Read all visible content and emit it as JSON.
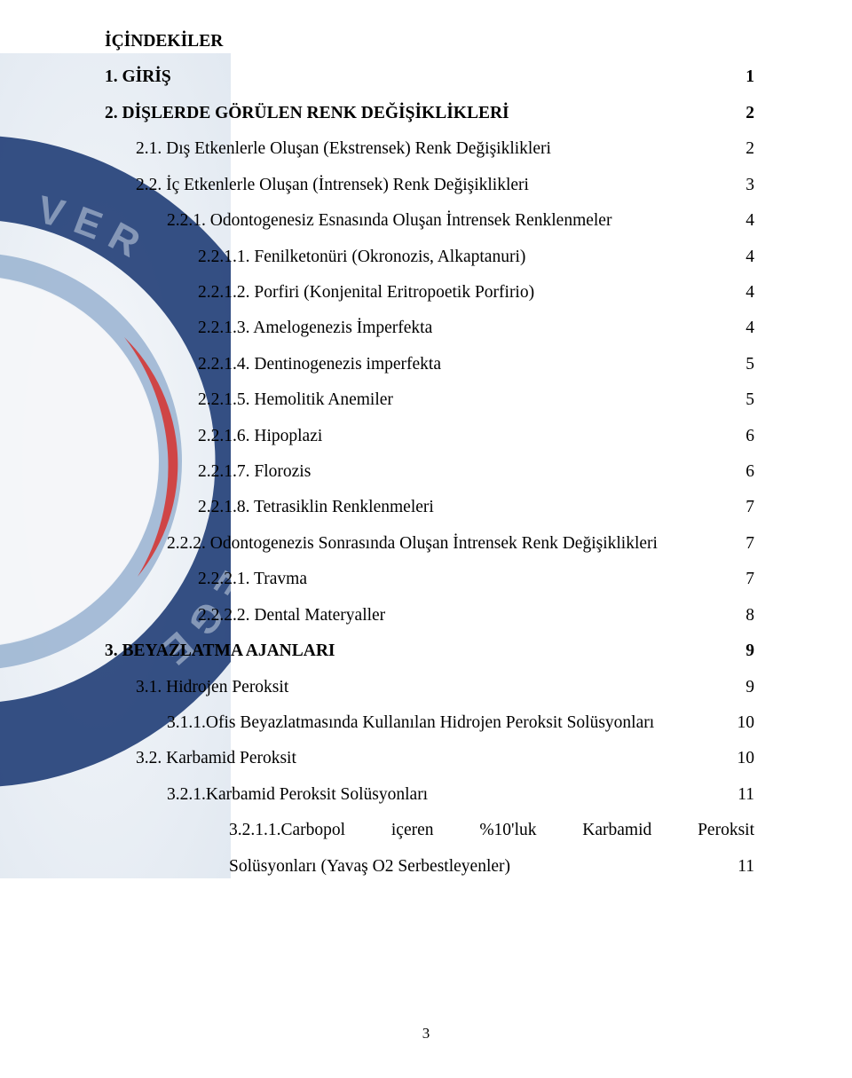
{
  "title": "İÇİNDEKİLER",
  "footer_page": "3",
  "watermark": {
    "bg": "#dfe6ee",
    "blue_dark": "#14326f",
    "blue_mid": "#6e8fbb",
    "red": "#d23b3a",
    "white": "#ffffff"
  },
  "entries": [
    {
      "indent": 0,
      "bold": true,
      "label": "1. GİRİŞ",
      "page": "1"
    },
    {
      "indent": 0,
      "bold": true,
      "label": "2. DİŞLERDE GÖRÜLEN RENK DEĞİŞİKLİKLERİ",
      "page": "2"
    },
    {
      "indent": 1,
      "bold": false,
      "label": "2.1. Dış Etkenlerle Oluşan (Ekstrensek) Renk Değişiklikleri",
      "page": "2"
    },
    {
      "indent": 1,
      "bold": false,
      "label": "2.2. İç Etkenlerle  Oluşan (İntrensek) Renk Değişiklikleri",
      "page": "3"
    },
    {
      "indent": 2,
      "bold": false,
      "label": "2.2.1. Odontogenesiz Esnasında Oluşan İntrensek Renklenmeler",
      "page": "4"
    },
    {
      "indent": 3,
      "bold": false,
      "label": "2.2.1.1. Fenilketonüri (Okronozis, Alkaptanuri)",
      "page": "4"
    },
    {
      "indent": 3,
      "bold": false,
      "label": "2.2.1.2. Porfiri (Konjenital Eritropoetik Porfirio)",
      "page": "4"
    },
    {
      "indent": 3,
      "bold": false,
      "label": "2.2.1.3. Amelogenezis İmperfekta",
      "page": "4"
    },
    {
      "indent": 3,
      "bold": false,
      "label": "2.2.1.4. Dentinogenezis imperfekta",
      "page": "5"
    },
    {
      "indent": 3,
      "bold": false,
      "label": "2.2.1.5. Hemolitik Anemiler",
      "page": "5"
    },
    {
      "indent": 3,
      "bold": false,
      "label": "2.2.1.6. Hipoplazi",
      "page": "6"
    },
    {
      "indent": 3,
      "bold": false,
      "label": "2.2.1.7. Florozis",
      "page": "6"
    },
    {
      "indent": 3,
      "bold": false,
      "label": "2.2.1.8. Tetrasiklin Renklenmeleri",
      "page": "7"
    },
    {
      "indent": 2,
      "bold": false,
      "label": "2.2.2. Odontogenezis Sonrasında Oluşan İntrensek Renk Değişiklikleri",
      "page": "7"
    },
    {
      "indent": 3,
      "bold": false,
      "label": "2.2.2.1. Travma",
      "page": "7"
    },
    {
      "indent": 3,
      "bold": false,
      "label": "2.2.2.2. Dental Materyaller",
      "page": "8"
    },
    {
      "indent": 0,
      "bold": true,
      "label": "3. BEYAZLATMA AJANLARI",
      "page": "9"
    },
    {
      "indent": 1,
      "bold": false,
      "label": "3.1. Hidrojen Peroksit",
      "page": "9"
    },
    {
      "indent": 2,
      "bold": false,
      "label": "3.1.1.Ofis Beyazlatmasında Kullanılan Hidrojen Peroksit Solüsyonları",
      "page": "10"
    },
    {
      "indent": 1,
      "bold": false,
      "label": "3.2. Karbamid Peroksit",
      "page": "10"
    },
    {
      "indent": 2,
      "bold": false,
      "label": "3.2.1.Karbamid Peroksit Solüsyonları",
      "page": "11"
    }
  ],
  "last_multi": {
    "line1": [
      "3.2.1.1.Carbopol",
      "içeren",
      "%10'luk",
      "Karbamid",
      "Peroksit"
    ],
    "line2_label": "Solüsyonları (Yavaş O2 Serbestleyenler)",
    "line2_page": "11"
  }
}
